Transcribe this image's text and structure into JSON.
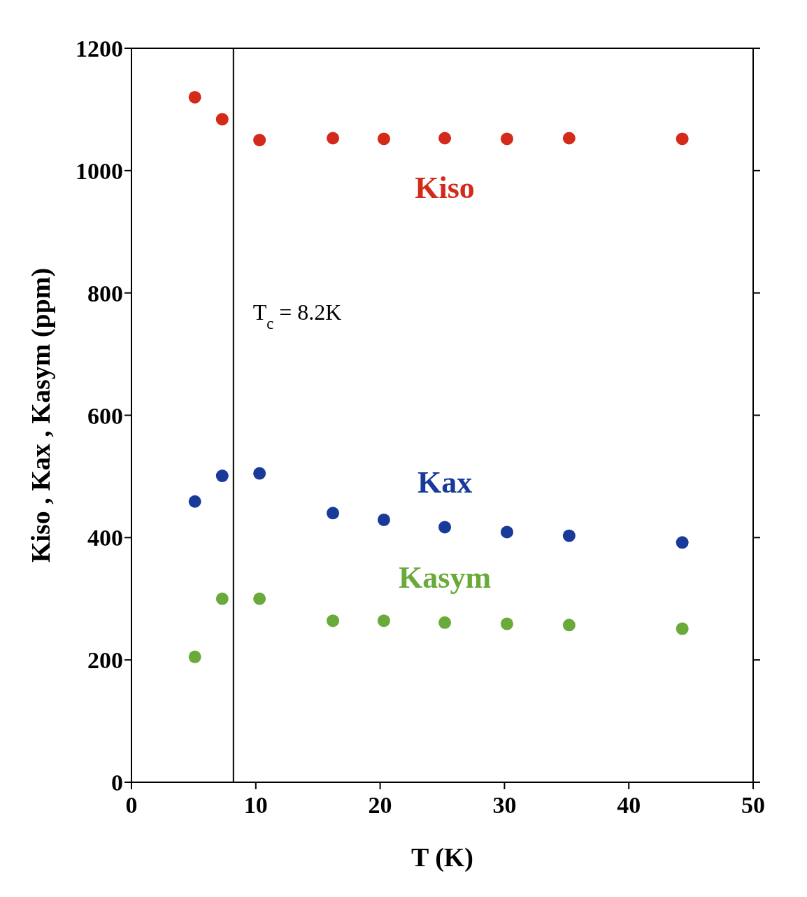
{
  "chart_data": {
    "type": "scatter",
    "xlabel": "T (K)",
    "ylabel": "Kiso , Kax , Kasym (ppm)",
    "xlim": [
      0,
      50
    ],
    "xticks": [
      0,
      10,
      20,
      30,
      40,
      50
    ],
    "ylim": [
      0,
      1200
    ],
    "yticks": [
      0,
      200,
      400,
      600,
      800,
      1000,
      1200
    ],
    "marker": "circle",
    "x": [
      5.1,
      7.3,
      10.3,
      16.2,
      20.3,
      25.2,
      30.2,
      35.2,
      44.3
    ],
    "series": [
      {
        "name": "Kiso",
        "color": "#d42a1a",
        "values": [
          1120,
          1084,
          1050,
          1053,
          1052,
          1053,
          1052,
          1053,
          1052
        ]
      },
      {
        "name": "Kax",
        "color": "#1a3a9a",
        "values": [
          459,
          501,
          505,
          440,
          429,
          417,
          409,
          403,
          392
        ]
      },
      {
        "name": "Kasym",
        "color": "#6aaa3a",
        "values": [
          205,
          300,
          300,
          264,
          264,
          261,
          259,
          257,
          251
        ]
      }
    ],
    "ref_lines": [
      {
        "axis": "x",
        "value": 8.2,
        "label": "T$_{c}$ = 8.2K",
        "color": "#000000"
      }
    ]
  }
}
